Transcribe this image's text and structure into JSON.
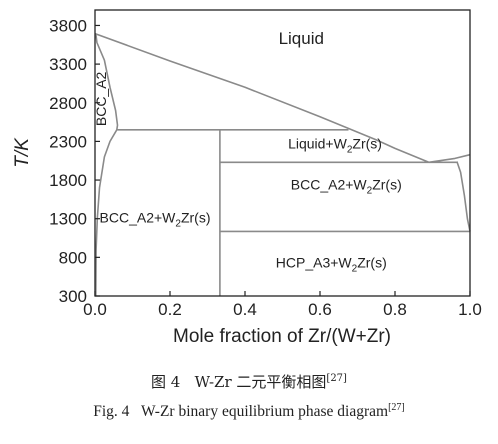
{
  "chart_data": {
    "type": "phase diagram",
    "xlabel": "Mole fraction of Zr/(W+Zr)",
    "ylabel": "T/K",
    "xlim": [
      0.0,
      1.0
    ],
    "ylim": [
      300,
      4000
    ],
    "x_ticks": [
      "0.0",
      "0.2",
      "0.4",
      "0.6",
      "0.8",
      "1.0"
    ],
    "y_ticks": [
      "300",
      "800",
      "1300",
      "1800",
      "2300",
      "2800",
      "3300",
      "3800"
    ],
    "regions": [
      {
        "label": "Liquid",
        "x": 0.55,
        "T": 3560
      },
      {
        "label": "BCC_A2",
        "x": 0.03,
        "T": 2850,
        "rotated": true
      },
      {
        "label": "Liquid+W",
        "sub": "2",
        "suffix": "Zr(s)",
        "x": 0.64,
        "T": 2210
      },
      {
        "label": "BCC_A2+W",
        "sub": "2",
        "suffix": "Zr(s)",
        "x": 0.67,
        "T": 1680
      },
      {
        "label": "BCC_A2+W",
        "sub": "2",
        "suffix": "Zr(s)",
        "x": 0.16,
        "T": 1250
      },
      {
        "label": "HCP_A3+W",
        "sub": "2",
        "suffix": "Zr(s)",
        "x": 0.63,
        "T": 670
      }
    ],
    "curves": {
      "liquidus_w": [
        [
          0.0,
          3695
        ],
        [
          0.2,
          3340
        ],
        [
          0.4,
          3000
        ],
        [
          0.6,
          2620
        ],
        [
          0.75,
          2320
        ],
        [
          0.8,
          2210
        ],
        [
          0.89,
          2030
        ]
      ],
      "liquidus_zr": [
        [
          0.89,
          2030
        ],
        [
          0.96,
          2080
        ],
        [
          1.0,
          2128
        ]
      ],
      "solvus_w_bcc": [
        [
          0.002,
          3695
        ],
        [
          0.005,
          3580
        ],
        [
          0.025,
          3350
        ],
        [
          0.04,
          3000
        ],
        [
          0.055,
          2700
        ],
        [
          0.06,
          2510
        ],
        [
          0.058,
          2450
        ],
        [
          0.04,
          2300
        ],
        [
          0.025,
          2100
        ],
        [
          0.012,
          1700
        ],
        [
          0.006,
          1300
        ],
        [
          0.003,
          900
        ],
        [
          0.002,
          300
        ]
      ],
      "solvus_zr_bcc": [
        [
          0.965,
          2040
        ],
        [
          0.975,
          1900
        ],
        [
          0.985,
          1600
        ],
        [
          0.993,
          1300
        ],
        [
          1.0,
          1136
        ]
      ],
      "peritectic_line": [
        [
          0.06,
          2450
        ],
        [
          0.676,
          2450
        ]
      ],
      "eutectic_line": [
        [
          0.333,
          2030
        ],
        [
          0.965,
          2030
        ]
      ],
      "eutectoid_line": [
        [
          0.333,
          1136
        ],
        [
          1.0,
          1136
        ]
      ],
      "w2zr_line": [
        [
          0.333,
          300
        ],
        [
          0.333,
          2450
        ]
      ]
    },
    "title": ""
  },
  "captions": {
    "zh_label": "图 4",
    "zh_text": "W-Zr 二元平衡相图",
    "zh_ref": "[27]",
    "en_label": "Fig. 4",
    "en_text": "W-Zr binary equilibrium phase diagram",
    "en_ref": "[27]"
  }
}
